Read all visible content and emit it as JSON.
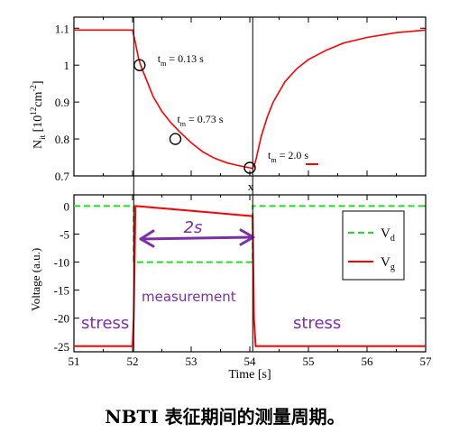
{
  "caption": "NBTI 表征期间的测量周期。",
  "chart_data": [
    {
      "type": "line",
      "ylabel_main": "N",
      "ylabel_sub": "it",
      "ylabel_rest": " [10",
      "ylabel_sup": "12",
      "ylabel_unit": "cm",
      "ylabel_sup2": "-2",
      "ylabel_close": "]",
      "xlim": [
        51,
        57
      ],
      "ylim": [
        0.7,
        1.13
      ],
      "yticks": [
        0.7,
        0.8,
        0.9,
        1.0,
        1.1
      ],
      "ytick_labels": [
        "0.7",
        "0.8",
        "0.9",
        "1",
        "1.1"
      ],
      "series": [
        {
          "color": "#ff0000",
          "x": [
            51.0,
            52.0,
            52.05,
            52.1,
            52.15,
            52.25,
            52.35,
            52.5,
            52.65,
            52.8,
            53.0,
            53.2,
            53.4,
            53.6,
            53.8,
            54.0,
            54.05,
            54.1,
            54.15,
            54.2,
            54.3,
            54.4,
            54.6,
            54.8,
            55.0,
            55.3,
            55.6,
            56.0,
            56.5,
            57.0
          ],
          "y": [
            1.095,
            1.095,
            1.06,
            1.02,
            0.995,
            0.955,
            0.915,
            0.875,
            0.845,
            0.82,
            0.79,
            0.765,
            0.748,
            0.736,
            0.728,
            0.722,
            0.72,
            0.74,
            0.775,
            0.81,
            0.86,
            0.9,
            0.955,
            0.99,
            1.015,
            1.04,
            1.06,
            1.075,
            1.088,
            1.095
          ]
        }
      ],
      "markers": [
        {
          "x": 52.12,
          "y": 1.0,
          "label_t": "t",
          "label_sub": "m",
          "label_rest": " = 0.13 s"
        },
        {
          "x": 52.73,
          "y": 0.8,
          "label_t": "t",
          "label_sub": "m",
          "label_rest": " = 0.73 s"
        },
        {
          "x": 54.0,
          "y": 0.722,
          "label_t": "t",
          "label_sub": "m",
          "label_rest": " = 2.0 s"
        }
      ],
      "x_marker_label": "x"
    },
    {
      "type": "line",
      "xlabel": "Time [s]",
      "ylabel": "Voltage (a.u.)",
      "xlim": [
        51,
        57
      ],
      "ylim": [
        -26,
        2
      ],
      "xticks": [
        51,
        52,
        53,
        54,
        55,
        56,
        57
      ],
      "xtick_labels": [
        "51",
        "52",
        "53",
        "54",
        "55",
        "56",
        "57"
      ],
      "yticks": [
        0,
        -5,
        -10,
        -15,
        -20,
        -25
      ],
      "ytick_labels": [
        "0",
        "-5",
        "-10",
        "-15",
        "-20",
        "-25"
      ],
      "series": [
        {
          "name": "V",
          "name_sub": "d",
          "color": "#22dd22",
          "dash": true,
          "x": [
            51.0,
            52.02,
            52.02,
            54.05,
            54.05,
            57.0
          ],
          "y": [
            0,
            0,
            -10,
            -10,
            0,
            0
          ]
        },
        {
          "name": "V",
          "name_sub": "g",
          "color": "#ff0000",
          "dash": false,
          "x": [
            51.0,
            52.0,
            52.02,
            52.05,
            54.05,
            54.07,
            54.1,
            57.0
          ],
          "y": [
            -25,
            -25,
            -20,
            0,
            -1.8,
            -20,
            -25,
            -25
          ]
        }
      ],
      "annotations": {
        "duration": "2s",
        "measurement": "measurement",
        "stress_left": "stress",
        "stress_right": "stress"
      }
    }
  ]
}
